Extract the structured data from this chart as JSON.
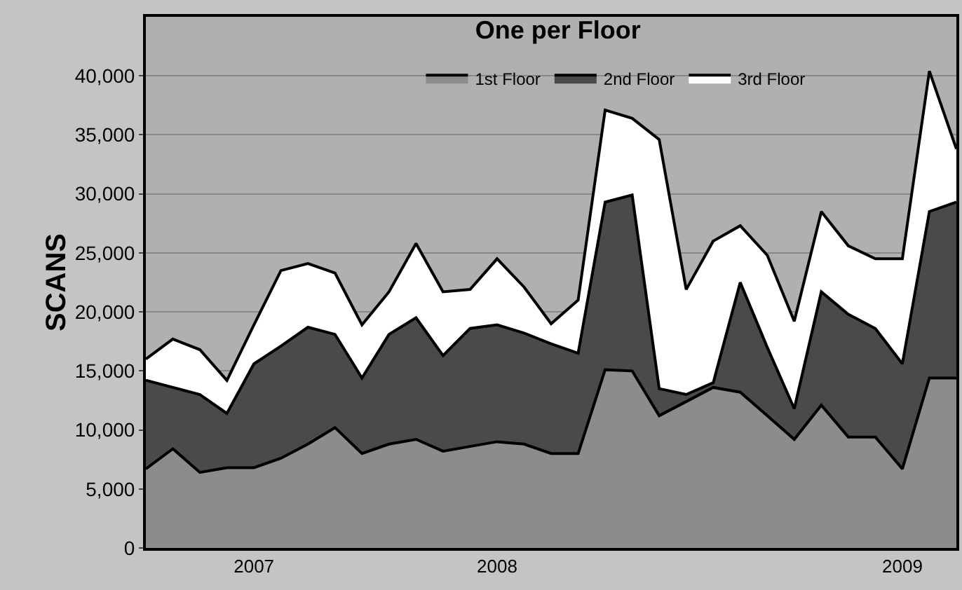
{
  "chart_data": {
    "type": "area",
    "stacked": true,
    "title": "One per Floor",
    "ylabel": "SCANS",
    "categories": [
      null,
      null,
      null,
      null,
      "2007",
      null,
      null,
      null,
      null,
      null,
      null,
      null,
      null,
      "2008",
      null,
      null,
      null,
      null,
      null,
      null,
      null,
      null,
      null,
      null,
      null,
      null,
      null,
      null,
      "2009",
      null,
      null
    ],
    "series": [
      {
        "name": "1st Floor",
        "color": "#8c8c8c",
        "values": [
          6700,
          8400,
          6400,
          6800,
          6800,
          7600,
          8800,
          10200,
          8000,
          8800,
          9200,
          8200,
          8600,
          9000,
          8800,
          8000,
          8000,
          15100,
          15000,
          11200,
          12400,
          13600,
          13200,
          11200,
          9200,
          12100,
          9400,
          9400,
          6700,
          14400,
          14400
        ]
      },
      {
        "name": "2nd Floor",
        "color": "#4a4a4a",
        "values": [
          7500,
          5200,
          6600,
          4600,
          8800,
          9500,
          9900,
          7900,
          6400,
          9300,
          10300,
          8100,
          10000,
          9900,
          9400,
          9300,
          8500,
          14200,
          14900,
          2300,
          600,
          400,
          9300,
          5800,
          2600,
          9600,
          10400,
          9200,
          8900,
          14100,
          14900
        ]
      },
      {
        "name": "3rd Floor",
        "color": "#ffffff",
        "values": [
          1800,
          4100,
          3800,
          2800,
          3300,
          6400,
          5400,
          5200,
          4500,
          3600,
          6300,
          5400,
          3300,
          5600,
          3900,
          1700,
          4500,
          7800,
          6500,
          21100,
          8900,
          12000,
          4800,
          7800,
          7400,
          6800,
          5800,
          5900,
          8900,
          11900,
          4500
        ]
      }
    ],
    "ylim": [
      0,
      45000
    ],
    "yticks": [
      {
        "value": 0,
        "label": "0"
      },
      {
        "value": 5000,
        "label": "5,000"
      },
      {
        "value": 10000,
        "label": "10,000"
      },
      {
        "value": 15000,
        "label": "15,000"
      },
      {
        "value": 20000,
        "label": "20,000"
      },
      {
        "value": 25000,
        "label": "25,000"
      },
      {
        "value": 30000,
        "label": "30,000"
      },
      {
        "value": 35000,
        "label": "35,000"
      },
      {
        "value": 40000,
        "label": "40,000"
      }
    ],
    "grid": "y",
    "legend": "top"
  }
}
